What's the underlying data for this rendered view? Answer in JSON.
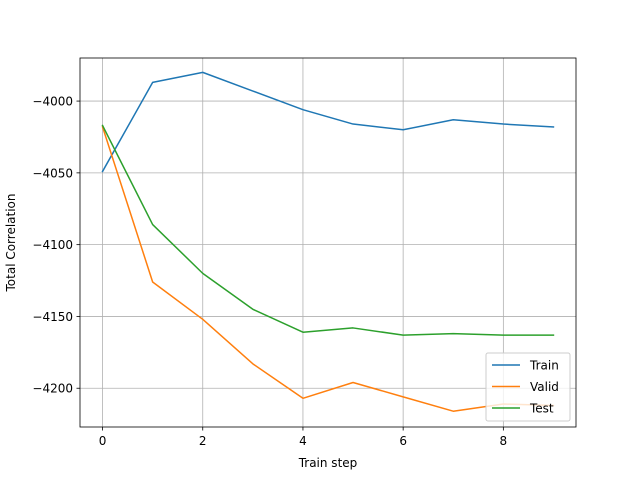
{
  "chart_data": {
    "type": "line",
    "title": "",
    "xlabel": "Train step",
    "ylabel": "Total Correlation",
    "xlim": [
      -0.45,
      9.45
    ],
    "ylim": [
      -4227,
      -3970
    ],
    "xticks": [
      0,
      2,
      4,
      6,
      8
    ],
    "yticks": [
      -4200,
      -4150,
      -4100,
      -4050,
      -4000
    ],
    "grid": true,
    "legend_position": "lower right",
    "x": [
      0,
      1,
      2,
      3,
      4,
      5,
      6,
      7,
      8,
      9
    ],
    "series": [
      {
        "name": "Train",
        "color": "#1f77b4",
        "values": [
          -4049,
          -3987,
          -3980,
          -3993,
          -4006,
          -4016,
          -4020,
          -4013,
          -4016,
          -4018
        ]
      },
      {
        "name": "Valid",
        "color": "#ff7f0e",
        "values": [
          -4018,
          -4126,
          -4152,
          -4183,
          -4207,
          -4196,
          -4206,
          -4216,
          -4211,
          -4212
        ]
      },
      {
        "name": "Test",
        "color": "#2ca02c",
        "values": [
          -4017,
          -4086,
          -4120,
          -4145,
          -4161,
          -4158,
          -4163,
          -4162,
          -4163,
          -4163
        ]
      }
    ]
  }
}
